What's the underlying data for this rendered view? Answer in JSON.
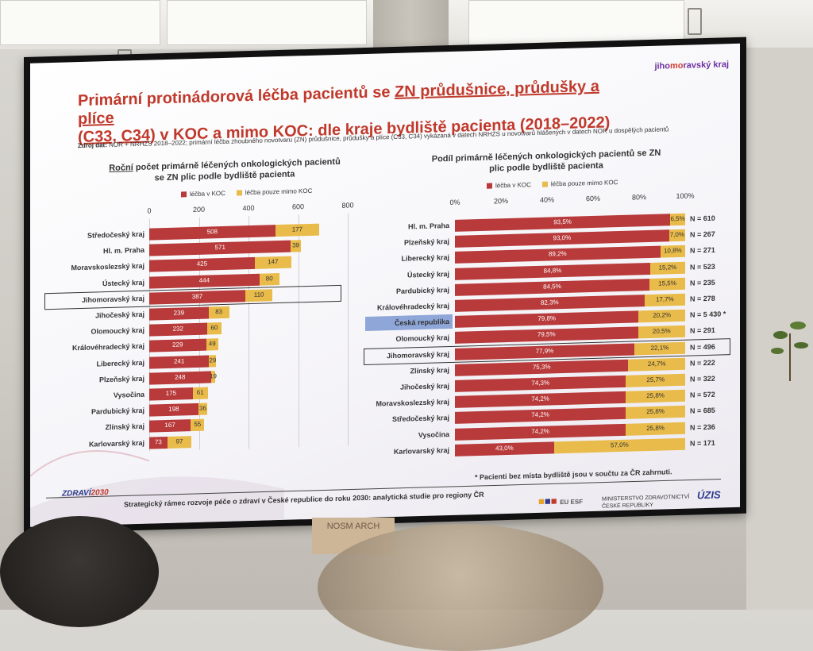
{
  "slide": {
    "title_line1_pre": "Primární protinádorová léčba pacientů se ",
    "title_line1_ul": "ZN průdušnice, průdušky a plíce",
    "title_line2_post": " v KOC a mimo KOC: dle kraje bydliště pacienta (2018–2022)",
    "title_line2_ul": "(C33, C34)",
    "brand_pre": "jiho",
    "brand_mid": "mo",
    "brand_post": "ravský kraj",
    "source_label": "Zdroj dat:",
    "source_text": " NOR + NRHZS 2018–2022; primární léčba zhoubného novotvaru (ZN) průdušnice, průdušky a plíce (C33, C34) vykázaná v datech NRHZS u novotvarů hlášených v datech NOR u dospělých pacientů",
    "footnote": "* Pacienti bez místa bydliště jsou v součtu za ČR zahrnuti.",
    "footer": "Strategický rámec rozvoje péče o zdraví v České republice do roku 2030: analytická studie pro regiony ČR",
    "zdravi_pre": "ZDRAVÍ",
    "zdravi_post": "2030",
    "ministry_line1": "MINISTERSTVO ZDRAVOTNICTVÍ",
    "ministry_line2": "ČESKÉ REPUBLIKY",
    "logos": "EU ESF",
    "uzis": "ÚZIS"
  },
  "room": {
    "sign_text": "NOSM ARCH"
  },
  "colors": {
    "koc": "#b83a3a",
    "mimo": "#e8bb4a",
    "highlight_band": "#8fa7d8",
    "title": "#c0392b"
  },
  "chart_data": [
    {
      "type": "bar",
      "orientation": "horizontal",
      "stacked": true,
      "title_ul": "Roční",
      "title_rest": " počet primárně léčených onkologických pacientů",
      "title_line2": "se ZN plic podle bydliště pacienta",
      "xlim": [
        0,
        800
      ],
      "xticks": [
        0,
        200,
        400,
        600,
        800
      ],
      "legend": [
        "léčba v KOC",
        "léčba pouze mimo KOC"
      ],
      "highlight": "Jihomoravský kraj",
      "categories": [
        "Středočeský kraj",
        "Hl. m. Praha",
        "Moravskoslezský kraj",
        "Ústecký kraj",
        "Jihomoravský kraj",
        "Jihočeský kraj",
        "Olomoucký kraj",
        "Královéhradecký kraj",
        "Liberecký kraj",
        "Plzeňský kraj",
        "Vysočina",
        "Pardubický kraj",
        "Zlínský kraj",
        "Karlovarský kraj"
      ],
      "series": [
        {
          "name": "léčba v KOC",
          "values": [
            508,
            571,
            425,
            444,
            387,
            239,
            232,
            229,
            241,
            248,
            175,
            198,
            167,
            73
          ]
        },
        {
          "name": "léčba pouze mimo KOC",
          "values": [
            177,
            39,
            147,
            80,
            110,
            83,
            60,
            49,
            29,
            19,
            61,
            36,
            55,
            97
          ]
        }
      ]
    },
    {
      "type": "bar",
      "orientation": "horizontal",
      "stacked": true,
      "percent": true,
      "title_line1": "Podíl primárně léčených onkologických pacientů se ZN",
      "title_line2": "plic podle bydliště pacienta",
      "xlim": [
        0,
        100
      ],
      "xticks": [
        "0%",
        "20%",
        "40%",
        "60%",
        "80%",
        "100%"
      ],
      "legend": [
        "léčba v KOC",
        "léčba pouze mimo KOC"
      ],
      "highlight": "Jihomoravský kraj",
      "highlight_band": "Česká republika",
      "categories": [
        "Hl. m. Praha",
        "Plzeňský kraj",
        "Liberecký kraj",
        "Ústecký kraj",
        "Pardubický kraj",
        "Královéhradecký kraj",
        "Česká republika",
        "Olomoucký kraj",
        "Jihomoravský kraj",
        "Zlínský kraj",
        "Jihočeský kraj",
        "Moravskoslezský kraj",
        "Středočeský kraj",
        "Vysočina",
        "Karlovarský kraj"
      ],
      "series": [
        {
          "name": "léčba v KOC",
          "values": [
            93.5,
            93.0,
            89.2,
            84.8,
            84.5,
            82.3,
            79.8,
            79.5,
            77.9,
            75.3,
            74.3,
            74.2,
            74.2,
            74.2,
            43.0
          ],
          "labels": [
            "93,5%",
            "93,0%",
            "89,2%",
            "84,8%",
            "84,5%",
            "82,3%",
            "79,8%",
            "79,5%",
            "77,9%",
            "75,3%",
            "74,3%",
            "74,2%",
            "74,2%",
            "74,2%",
            "43,0%"
          ]
        },
        {
          "name": "léčba pouze mimo KOC",
          "values": [
            6.5,
            7.0,
            10.8,
            15.2,
            15.5,
            17.7,
            20.2,
            20.5,
            22.1,
            24.7,
            25.7,
            25.8,
            25.8,
            25.8,
            57.0
          ],
          "labels": [
            "6,5%",
            "7,0%",
            "10,8%",
            "15,2%",
            "15,5%",
            "17,7%",
            "20,2%",
            "20,5%",
            "22,1%",
            "24,7%",
            "25,7%",
            "25,8%",
            "25,8%",
            "25,8%",
            "57,0%"
          ]
        }
      ],
      "n_labels": [
        "N = 610",
        "N = 267",
        "N = 271",
        "N = 523",
        "N = 235",
        "N = 278",
        "N = 5 430 *",
        "N = 291",
        "N = 496",
        "N = 222",
        "N = 322",
        "N = 572",
        "N = 685",
        "N = 236",
        "N = 171"
      ]
    }
  ]
}
